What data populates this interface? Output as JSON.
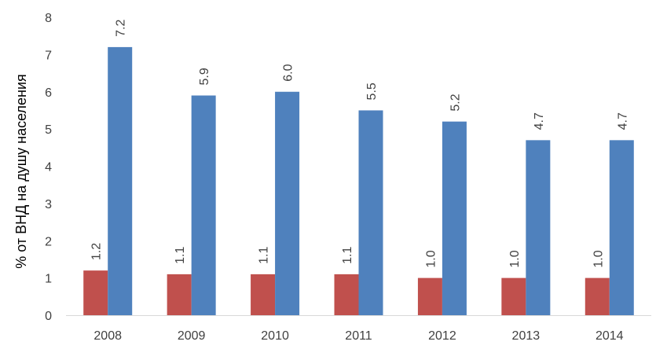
{
  "chart_data": {
    "type": "bar",
    "title": "",
    "xlabel": "",
    "ylabel": "% от ВНД на душу населения",
    "categories": [
      "2008",
      "2009",
      "2010",
      "2011",
      "2012",
      "2013",
      "2014"
    ],
    "yticks": [
      "0",
      "1",
      "2",
      "3",
      "4",
      "5",
      "6",
      "7",
      "8"
    ],
    "ylim": [
      0,
      8
    ],
    "grid": false,
    "series": [
      {
        "color": "#c0504d",
        "values": [
          1.2,
          1.1,
          1.1,
          1.1,
          1.0,
          1.0,
          1.0
        ],
        "labels": [
          "1.2",
          "1.1",
          "1.1",
          "1.1",
          "1.0",
          "1.0",
          "1.0"
        ]
      },
      {
        "color": "#4f81bd",
        "values": [
          7.2,
          5.9,
          6.0,
          5.5,
          5.2,
          4.7,
          4.7
        ],
        "labels": [
          "7.2",
          "5.9",
          "6.0",
          "5.5",
          "5.2",
          "4.7",
          "4.7"
        ]
      }
    ]
  }
}
